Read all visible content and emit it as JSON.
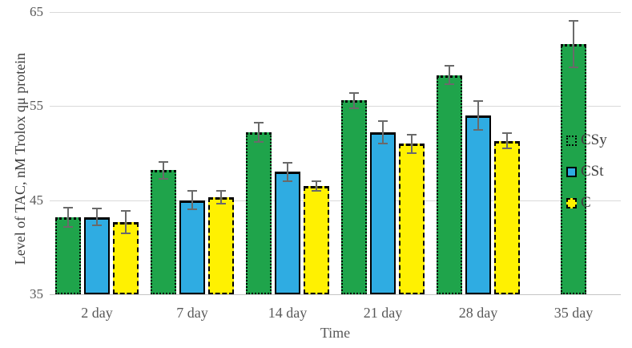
{
  "chart_data": {
    "type": "bar",
    "title": "",
    "xlabel": "Time",
    "ylabel": "Level of TAC, nM Trolox qμ protein",
    "ylim": [
      35,
      65
    ],
    "yticks": [
      65,
      55,
      45,
      35
    ],
    "grid": true,
    "legend_position": "right",
    "categories": [
      "2 day",
      "7 day",
      "14 day",
      "21 day",
      "28 day",
      "35 day"
    ],
    "series": [
      {
        "name": "CSy",
        "color": "#1fa44b",
        "border_style": "dotted",
        "values": [
          43.2,
          48.2,
          52.2,
          55.6,
          58.3,
          61.6
        ],
        "errors": [
          1.0,
          0.9,
          1.0,
          0.8,
          1.0,
          2.5
        ]
      },
      {
        "name": "CSt",
        "color": "#2face2",
        "border_style": "solid",
        "values": [
          43.2,
          45.0,
          48.0,
          52.2,
          54.0,
          null
        ],
        "errors": [
          0.9,
          1.0,
          1.0,
          1.2,
          1.5,
          null
        ]
      },
      {
        "name": "C",
        "color": "#fff101",
        "border_style": "dashed",
        "values": [
          42.7,
          45.3,
          46.5,
          51.0,
          51.3,
          null
        ],
        "errors": [
          1.2,
          0.7,
          0.5,
          1.0,
          0.8,
          null
        ]
      }
    ],
    "colors": {
      "gridline": "#d9d9d9",
      "axis_line": "#c6c6c6",
      "error_bar": "#6a6a6a",
      "tick_text": "#595959",
      "title_text": "#404040"
    }
  }
}
